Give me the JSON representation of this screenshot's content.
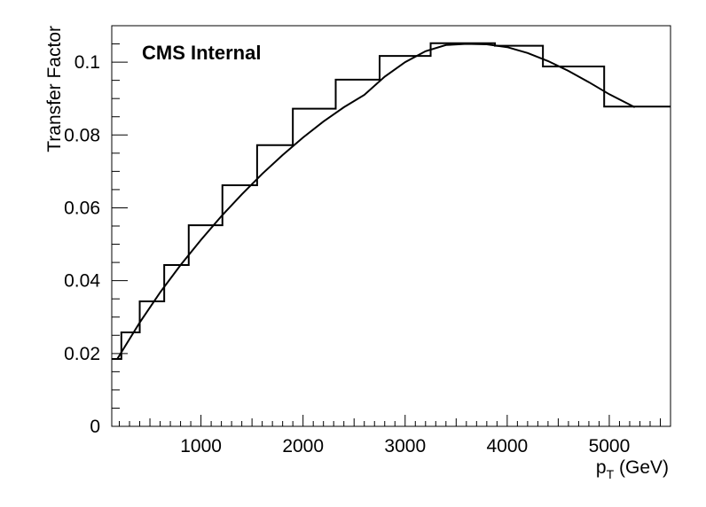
{
  "chart_data": {
    "type": "line",
    "title": "",
    "annotation": "CMS Internal",
    "xlabel_main": "p",
    "xlabel_sub": "T",
    "xlabel_unit": " (GeV)",
    "ylabel": "Transfer Factor",
    "xlim": [
      126,
      5600
    ],
    "ylim": [
      0,
      0.11
    ],
    "x_ticks": [
      {
        "value": 1000,
        "label": "1000"
      },
      {
        "value": 2000,
        "label": "2000"
      },
      {
        "value": 3000,
        "label": "3000"
      },
      {
        "value": 4000,
        "label": "4000"
      },
      {
        "value": 5000,
        "label": "5000"
      }
    ],
    "y_ticks": [
      {
        "value": 0,
        "label": "0"
      },
      {
        "value": 0.02,
        "label": "0.02"
      },
      {
        "value": 0.04,
        "label": "0.04"
      },
      {
        "value": 0.06,
        "label": "0.06"
      },
      {
        "value": 0.08,
        "label": "0.08"
      },
      {
        "value": 0.1,
        "label": "0.1"
      }
    ],
    "grid": false,
    "series": [
      {
        "kind": "histogram",
        "bin_edges": [
          126,
          220,
          400,
          640,
          880,
          1210,
          1550,
          1900,
          2320,
          2750,
          3250,
          3880,
          4350,
          4950,
          5600
        ],
        "values": [
          0.0185,
          0.0258,
          0.0343,
          0.0443,
          0.0552,
          0.0662,
          0.0772,
          0.0872,
          0.0952,
          0.1017,
          0.1052,
          0.1045,
          0.0988,
          0.0878
        ]
      },
      {
        "kind": "fit",
        "x": [
          180,
          400,
          600,
          800,
          1000,
          1200,
          1400,
          1600,
          1800,
          2000,
          2200,
          2400,
          2600,
          2800,
          3000,
          3200,
          3400,
          3600,
          3800,
          4000,
          4200,
          4400,
          4600,
          4800,
          5000,
          5250
        ],
        "y": [
          0.0185,
          0.0285,
          0.0368,
          0.0443,
          0.0512,
          0.0577,
          0.0637,
          0.0693,
          0.0745,
          0.0793,
          0.0837,
          0.0876,
          0.091,
          0.096,
          0.1,
          0.103,
          0.1047,
          0.105,
          0.1049,
          0.1041,
          0.1025,
          0.1003,
          0.0976,
          0.0945,
          0.0912,
          0.0876
        ]
      }
    ]
  }
}
